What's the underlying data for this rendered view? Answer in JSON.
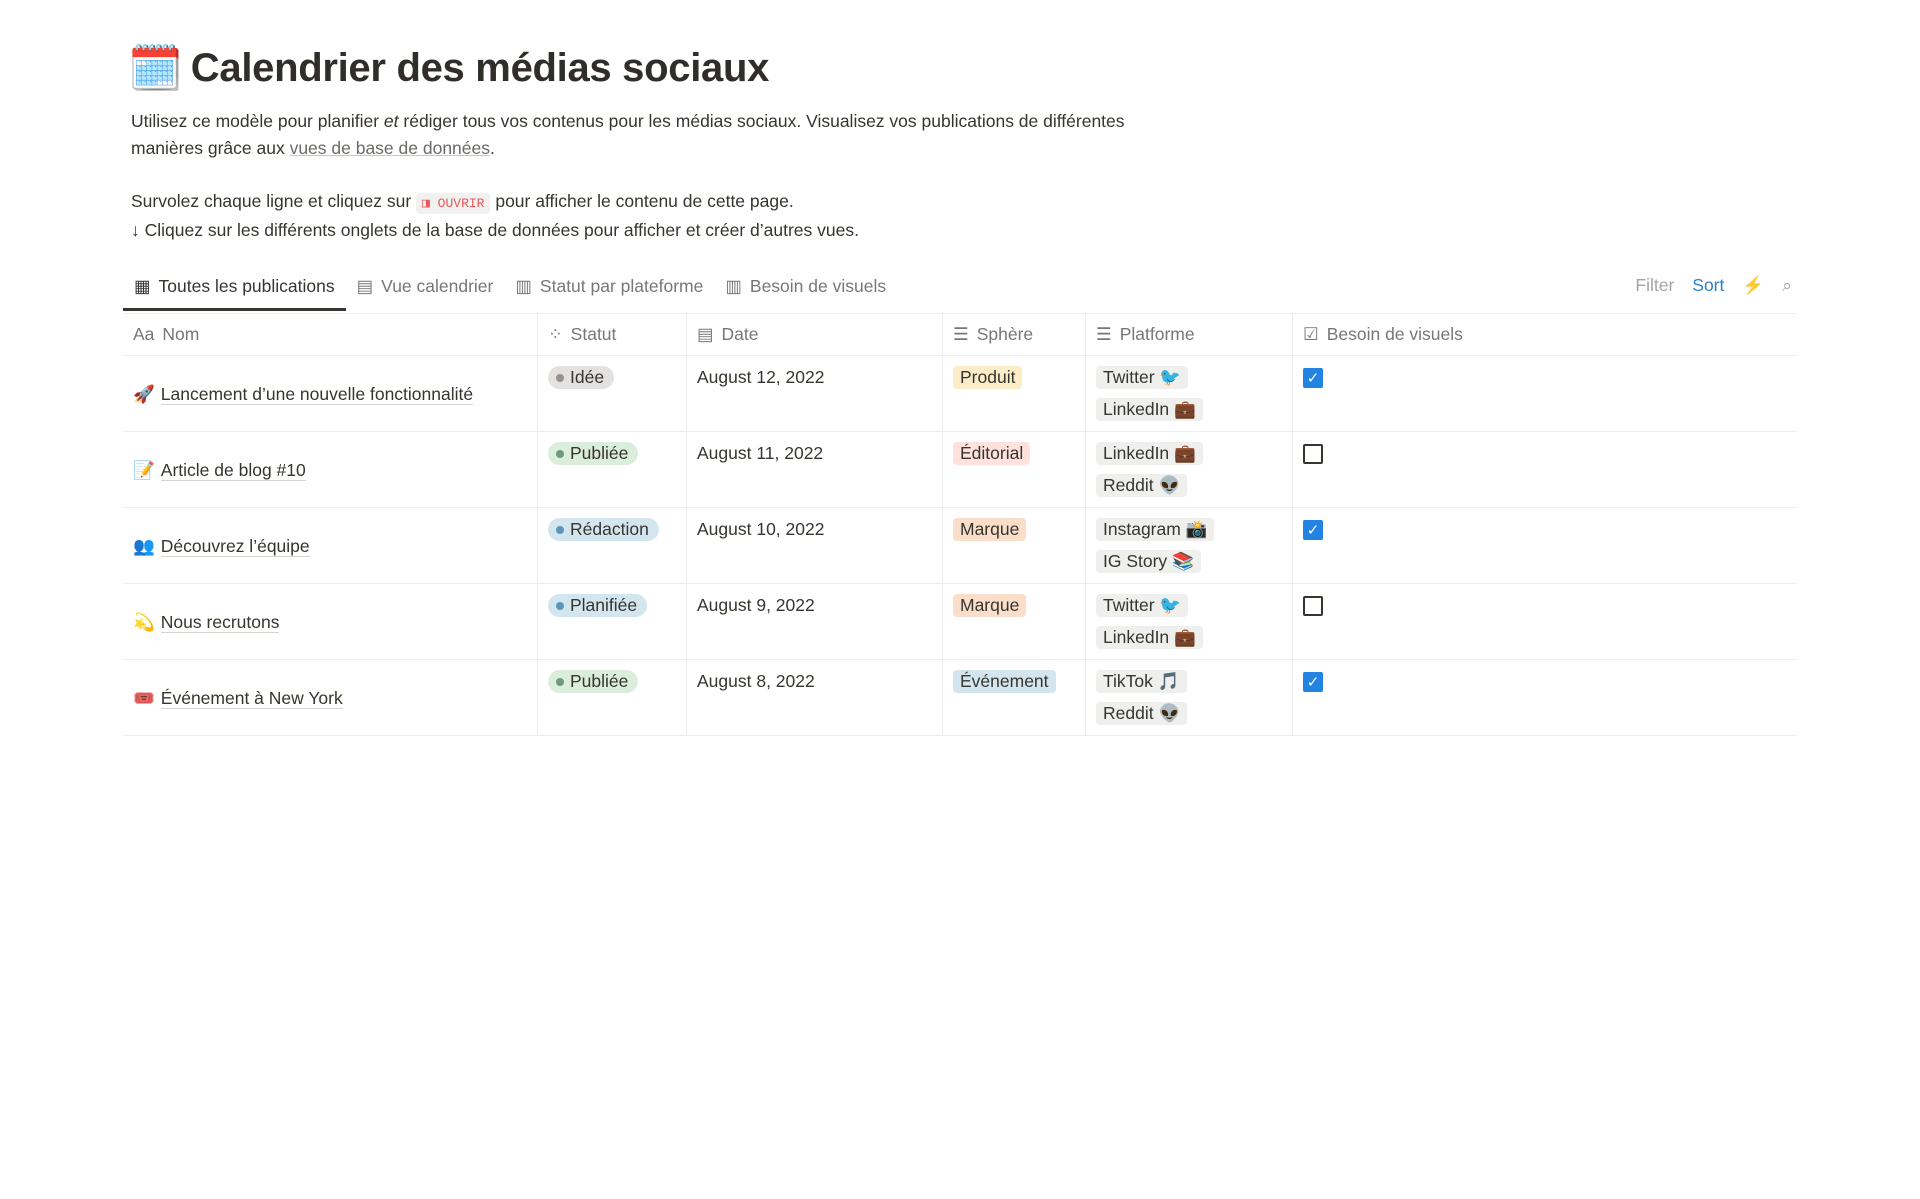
{
  "page": {
    "icon": "🗓️",
    "title": "Calendrier des médias sociaux",
    "desc1_a": "Utilisez ce modèle pour planifier ",
    "desc1_em": "et",
    "desc1_b": " rédiger tous vos contenus pour les médias sociaux. Visualisez vos publications de différentes manières grâce aux ",
    "desc1_link": "vues de base de données",
    "desc1_end": ".",
    "desc2_a": "Survolez chaque ligne et cliquez sur ",
    "desc2_code": "◨ OUVRIR",
    "desc2_b": " pour afficher le contenu de cette page.",
    "desc3": "↓ Cliquez sur les différents onglets de la base de données pour afficher et créer d’autres vues."
  },
  "tabs": [
    {
      "label": "Toutes les publications",
      "icon": "table-icon"
    },
    {
      "label": "Vue calendrier",
      "icon": "calendar-icon"
    },
    {
      "label": "Statut par plateforme",
      "icon": "board-icon"
    },
    {
      "label": "Besoin de visuels",
      "icon": "board-icon"
    }
  ],
  "toolbar": {
    "filter": "Filter",
    "sort": "Sort",
    "automation": "⚡",
    "search": "⌕"
  },
  "columns": [
    {
      "label": "Nom",
      "icon": "Aa"
    },
    {
      "label": "Statut",
      "icon": "⁘"
    },
    {
      "label": "Date",
      "icon": "▤"
    },
    {
      "label": "Sphère",
      "icon": "☰"
    },
    {
      "label": "Platforme",
      "icon": "☰"
    },
    {
      "label": "Besoin de visuels",
      "icon": "☑"
    }
  ],
  "colors": {
    "checkbox": "#2383e2",
    "sort": "#2f80c4"
  },
  "rows": [
    {
      "emoji": "🚀",
      "name": "Lancement d’une nouvelle fonctionnalité",
      "status": "Idée",
      "date": "August 12, 2022",
      "sphere": "Produit",
      "platforms": [
        "Twitter 🐦",
        "LinkedIn 💼"
      ],
      "visuals": true
    },
    {
      "emoji": "📝",
      "name": "Article de blog #10",
      "status": "Publiée",
      "date": "August 11, 2022",
      "sphere": "Éditorial",
      "platforms": [
        "LinkedIn 💼",
        "Reddit 👽"
      ],
      "visuals": false
    },
    {
      "emoji": "👥",
      "name": "Découvrez l’équipe",
      "status": "Rédaction",
      "date": "August 10, 2022",
      "sphere": "Marque",
      "platforms": [
        "Instagram 📸",
        "IG Story 📚"
      ],
      "visuals": true
    },
    {
      "emoji": "💫",
      "name": "Nous recrutons",
      "status": "Planifiée",
      "date": "August 9, 2022",
      "sphere": "Marque",
      "platforms": [
        "Twitter 🐦",
        "LinkedIn 💼"
      ],
      "visuals": false
    },
    {
      "emoji": "🎟️",
      "name": "Événement à New York",
      "status": "Publiée",
      "date": "August 8, 2022",
      "sphere": "Événement",
      "platforms": [
        "TikTok 🎵",
        "Reddit 👽"
      ],
      "visuals": true
    }
  ]
}
